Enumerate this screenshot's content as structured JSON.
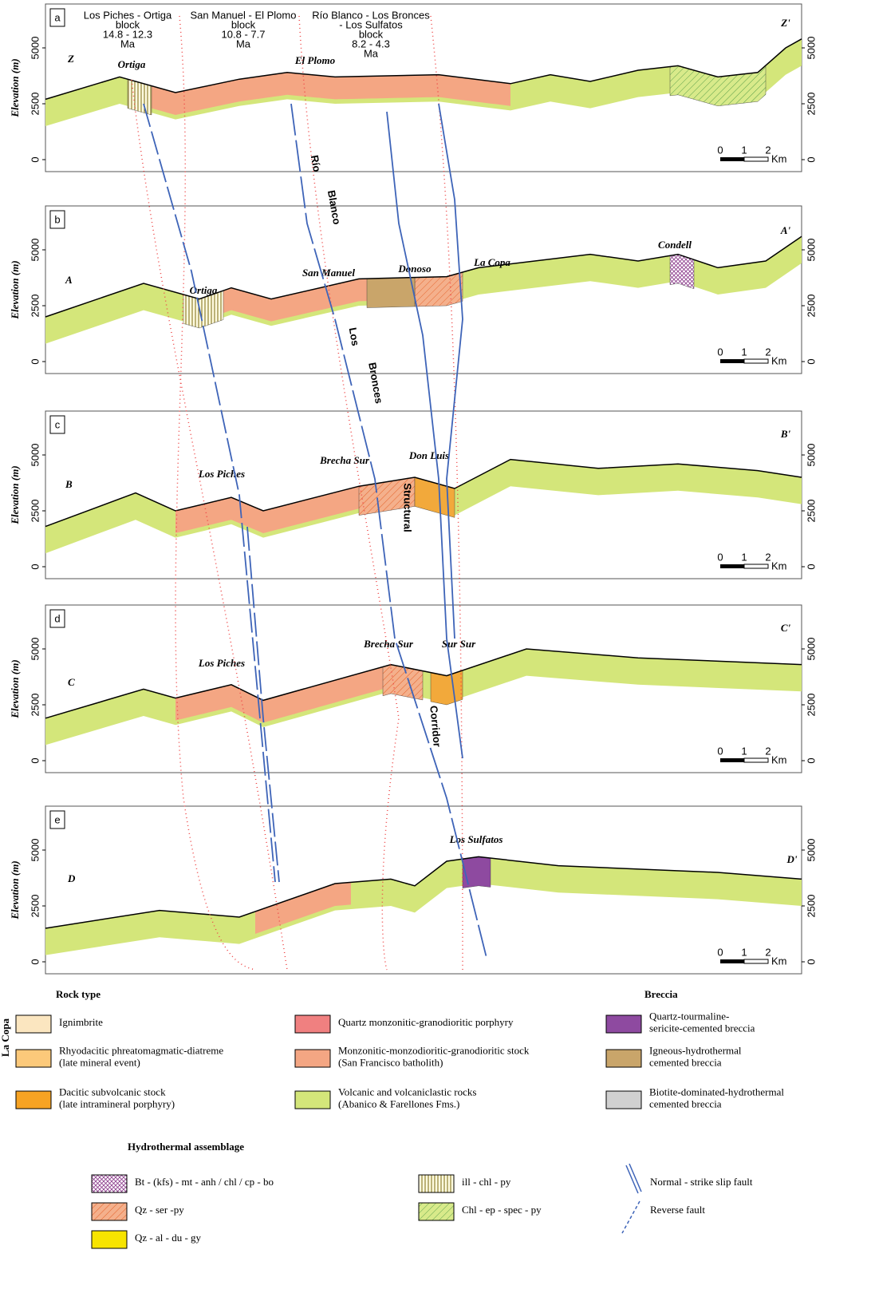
{
  "axis": {
    "title": "Elevation (m)",
    "ticks": [
      "0",
      "2500",
      "5000"
    ]
  },
  "scale": {
    "ticks": [
      "0",
      "1",
      "2"
    ],
    "unit": "Km"
  },
  "blocks": [
    {
      "lines": [
        "Los Piches - Ortiga",
        "block",
        "14.8 - 12.3",
        "Ma"
      ]
    },
    {
      "lines": [
        "San Manuel - El Plomo",
        "block",
        "10.8 - 7.7",
        "Ma"
      ]
    },
    {
      "lines": [
        "Río Blanco - Los Bronces",
        "- Los Sulfatos",
        "block",
        "8.2 - 4.3",
        "Ma"
      ]
    }
  ],
  "panels": [
    {
      "label": "a",
      "start": "Z",
      "end": "Z'",
      "places": [
        "Ortiga",
        "El Plomo"
      ]
    },
    {
      "label": "b",
      "start": "A",
      "end": "A'",
      "places": [
        "Ortiga",
        "San Manuel",
        "Donoso",
        "La Copa",
        "Condell"
      ]
    },
    {
      "label": "c",
      "start": "B",
      "end": "B'",
      "places": [
        "Los Piches",
        "Brecha Sur",
        "Don Luis"
      ]
    },
    {
      "label": "d",
      "start": "C",
      "end": "C'",
      "places": [
        "Los Piches",
        "Brecha Sur",
        "Sur Sur"
      ]
    },
    {
      "label": "e",
      "start": "D",
      "end": "D'",
      "places": [
        "Los Sulfatos"
      ]
    }
  ],
  "corridor": [
    "Río",
    "Blanco",
    "Los",
    "Bronces",
    "Structural",
    "Corridor"
  ],
  "side_label": "La Copa",
  "legend": {
    "rock_type": {
      "title": "Rock type",
      "items": [
        [
          "Ignimbrite"
        ],
        [
          "Rhyodacitic phreatomagmatic-diatreme",
          "(late mineral event)"
        ],
        [
          "Dacitic subvolcanic stock",
          "(late intramineral porphyry)"
        ],
        [
          "Quartz monzonitic-granodioritic porphyry"
        ],
        [
          "Monzonitic-monzodioritic-granodioritic stock",
          "(San Francisco batholith)"
        ],
        [
          "Volcanic and volcaniclastic rocks",
          "(Abanico & Farellones Fms.)"
        ]
      ]
    },
    "breccia": {
      "title": "Breccia",
      "items": [
        [
          "Quartz-tourmaline-",
          "sericite-cemented breccia"
        ],
        [
          "Igneous-hydrothermal",
          "cemented breccia"
        ],
        [
          "Biotite-dominated-hydrothermal",
          "cemented breccia"
        ]
      ]
    },
    "hydrothermal": {
      "title": "Hydrothermal assemblage",
      "items": [
        "Bt - (kfs) - mt - anh / chl / cp - bo",
        "Qz - ser -py",
        "Qz - al - du - gy",
        "ill - chl - py",
        "Chl - ep - spec - py"
      ]
    },
    "faults": [
      "Normal - strike slip fault",
      "Reverse fault"
    ]
  }
}
